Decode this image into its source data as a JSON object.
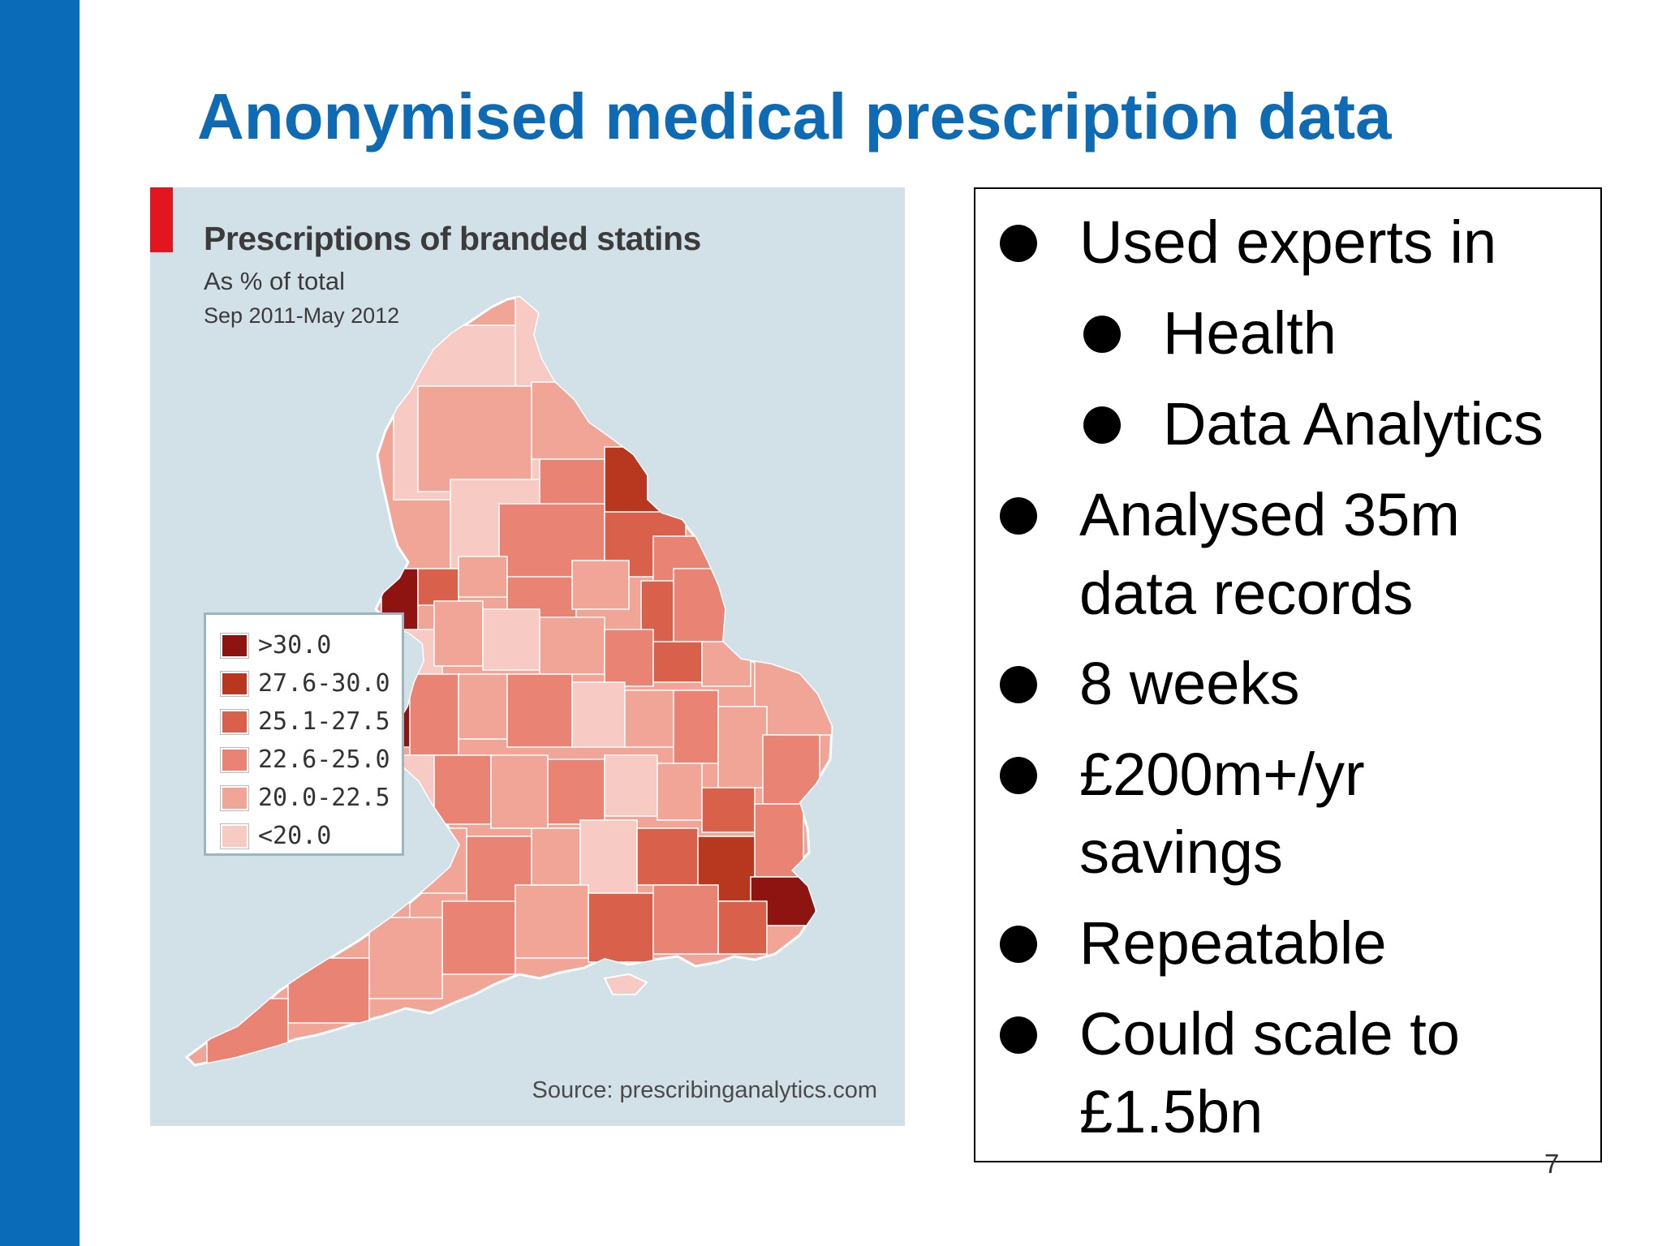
{
  "slide": {
    "title": "Anonymised medical prescription data",
    "page_number": "7"
  },
  "map": {
    "title": "Prescriptions of branded statins",
    "subtitle": "As % of total",
    "period": "Sep 2011-May 2012",
    "source": "Source: prescribinganalytics.com",
    "colors": {
      "background": "#d2e1e8",
      "c1": "#f7cbc4",
      "c2": "#f1a597",
      "c3": "#e98373",
      "c4": "#d9604b",
      "c5": "#b7371f",
      "c6": "#8e1412",
      "border": "#ffffff"
    },
    "legend": [
      {
        "label": ">30.0",
        "color": "#8e1412"
      },
      {
        "label": "27.6-30.0",
        "color": "#b7371f"
      },
      {
        "label": "25.1-27.5",
        "color": "#d9604b"
      },
      {
        "label": "22.6-25.0",
        "color": "#e98373"
      },
      {
        "label": "20.0-22.5",
        "color": "#f1a597"
      },
      {
        "label": "<20.0",
        "color": "#f7cbc4"
      }
    ]
  },
  "bullets": [
    {
      "level": 1,
      "text": "Used experts in"
    },
    {
      "level": 2,
      "text": "Health"
    },
    {
      "level": 2,
      "text": "Data Analytics"
    },
    {
      "level": 1,
      "text": "Analysed 35m"
    },
    {
      "level": 0,
      "text": "data records"
    },
    {
      "level": 1,
      "text": "8 weeks"
    },
    {
      "level": 1,
      "text": "£200m+/yr"
    },
    {
      "level": 0,
      "text": "savings"
    },
    {
      "level": 1,
      "text": "Repeatable"
    },
    {
      "level": 1,
      "text": "Could scale to"
    },
    {
      "level": 0,
      "text": "£1.5bn"
    }
  ]
}
